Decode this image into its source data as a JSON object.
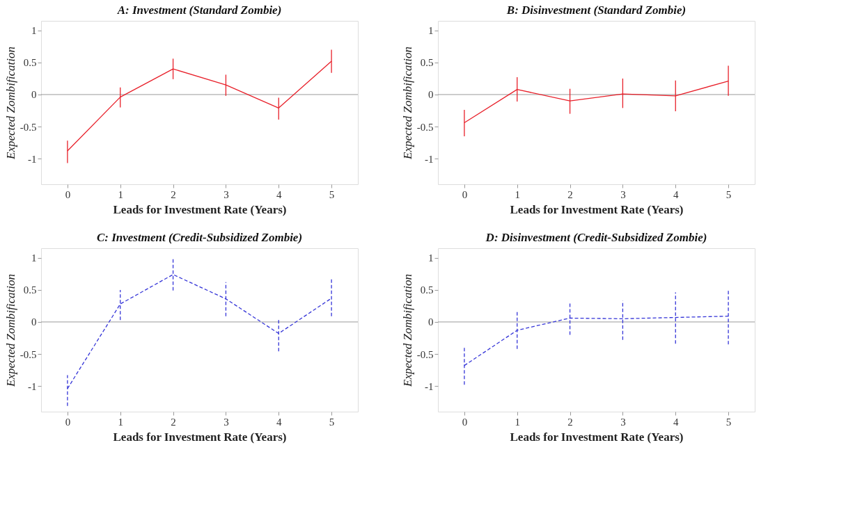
{
  "chart_data": [
    {
      "type": "line",
      "title": "A: Investment (Standard Zombie)",
      "xlabel": "Leads for Investment Rate (Years)",
      "ylabel": "Expected Zombification",
      "x": [
        0,
        1,
        2,
        3,
        4,
        5
      ],
      "xlim": [
        -0.5,
        5.5
      ],
      "ylim": [
        -1.4,
        1.15
      ],
      "xticks": [
        0,
        1,
        2,
        3,
        4,
        5
      ],
      "yticks": [
        -1,
        -0.5,
        0,
        0.5,
        1
      ],
      "grid": false,
      "marker": "none",
      "line_style": "solid",
      "ref_lines": [
        {
          "axis": "y",
          "value": 0,
          "color": "#999999"
        }
      ],
      "series": [
        {
          "color": "#e8202a",
          "values": [
            -0.88,
            -0.04,
            0.4,
            0.15,
            -0.21,
            0.52
          ],
          "errors": [
            [
              -1.07,
              -0.72
            ],
            [
              -0.2,
              0.11
            ],
            [
              0.24,
              0.56
            ],
            [
              -0.02,
              0.31
            ],
            [
              -0.39,
              -0.05
            ],
            [
              0.34,
              0.7
            ]
          ]
        }
      ]
    },
    {
      "type": "line",
      "title": "B: Disinvestment (Standard Zombie)",
      "xlabel": "Leads for Investment Rate (Years)",
      "ylabel": "Expected Zombification",
      "x": [
        0,
        1,
        2,
        3,
        4,
        5
      ],
      "xlim": [
        -0.5,
        5.5
      ],
      "ylim": [
        -1.4,
        1.15
      ],
      "xticks": [
        0,
        1,
        2,
        3,
        4,
        5
      ],
      "yticks": [
        -1,
        -0.5,
        0,
        0.5,
        1
      ],
      "grid": false,
      "marker": "none",
      "line_style": "solid",
      "ref_lines": [
        {
          "axis": "y",
          "value": 0,
          "color": "#999999"
        }
      ],
      "series": [
        {
          "color": "#e8202a",
          "values": [
            -0.44,
            0.08,
            -0.1,
            0.01,
            -0.02,
            0.21
          ],
          "errors": [
            [
              -0.65,
              -0.24
            ],
            [
              -0.11,
              0.27
            ],
            [
              -0.3,
              0.09
            ],
            [
              -0.21,
              0.25
            ],
            [
              -0.26,
              0.22
            ],
            [
              -0.02,
              0.45
            ]
          ]
        }
      ]
    },
    {
      "type": "line",
      "title": "C: Investment (Credit-Subsidized Zombie)",
      "xlabel": "Leads for Investment Rate (Years)",
      "ylabel": "Expected Zombification",
      "x": [
        0,
        1,
        2,
        3,
        4,
        5
      ],
      "xlim": [
        -0.5,
        5.5
      ],
      "ylim": [
        -1.4,
        1.15
      ],
      "xticks": [
        0,
        1,
        2,
        3,
        4,
        5
      ],
      "yticks": [
        -1,
        -0.5,
        0,
        0.5,
        1
      ],
      "grid": false,
      "marker": "none",
      "line_style": "dashed",
      "ref_lines": [
        {
          "axis": "y",
          "value": 0,
          "color": "#999999"
        }
      ],
      "series": [
        {
          "color": "#3535d8",
          "values": [
            -1.04,
            0.28,
            0.74,
            0.36,
            -0.18,
            0.37
          ],
          "errors": [
            [
              -1.31,
              -0.83
            ],
            [
              0.03,
              0.5
            ],
            [
              0.49,
              0.99
            ],
            [
              0.09,
              0.62
            ],
            [
              -0.46,
              0.06
            ],
            [
              0.09,
              0.68
            ]
          ]
        }
      ]
    },
    {
      "type": "line",
      "title": "D: Disinvestment (Credit-Subsidized Zombie)",
      "xlabel": "Leads for Investment Rate (Years)",
      "ylabel": "Expected Zombification",
      "x": [
        0,
        1,
        2,
        3,
        4,
        5
      ],
      "xlim": [
        -0.5,
        5.5
      ],
      "ylim": [
        -1.4,
        1.15
      ],
      "xticks": [
        0,
        1,
        2,
        3,
        4,
        5
      ],
      "yticks": [
        -1,
        -0.5,
        0,
        0.5,
        1
      ],
      "grid": false,
      "marker": "none",
      "line_style": "dashed",
      "ref_lines": [
        {
          "axis": "y",
          "value": 0,
          "color": "#999999"
        }
      ],
      "series": [
        {
          "color": "#3535d8",
          "values": [
            -0.68,
            -0.13,
            0.06,
            0.05,
            0.07,
            0.09
          ],
          "errors": [
            [
              -0.98,
              -0.39
            ],
            [
              -0.42,
              0.16
            ],
            [
              -0.2,
              0.31
            ],
            [
              -0.28,
              0.33
            ],
            [
              -0.34,
              0.46
            ],
            [
              -0.35,
              0.51
            ]
          ]
        }
      ]
    }
  ]
}
